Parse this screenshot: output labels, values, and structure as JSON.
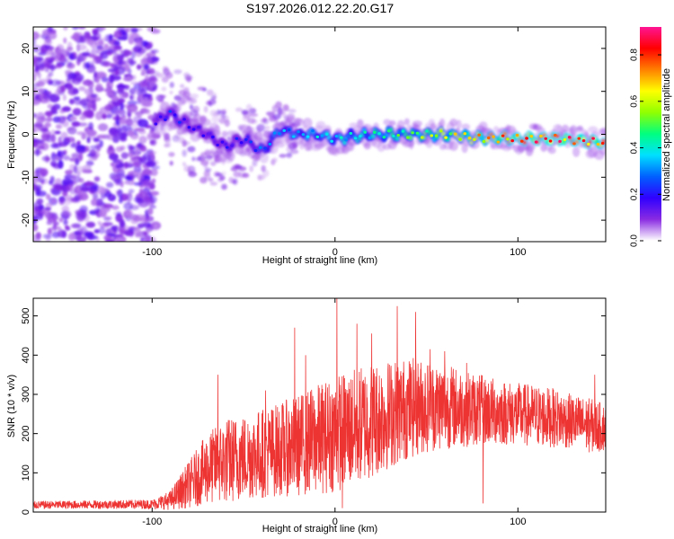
{
  "chart_data": [
    {
      "type": "heatmap",
      "title": "S197.2026.012.22.20.G17",
      "xlabel": "Height of straight line (km)",
      "ylabel": "Frequency (Hz)",
      "xlim": [
        -165,
        148
      ],
      "ylim": [
        -25,
        25
      ],
      "xticks": [
        -100,
        0,
        100
      ],
      "xtick_labels": [
        "-100",
        "0",
        "100"
      ],
      "yticks": [
        -20,
        -10,
        0,
        10,
        20
      ],
      "ytick_labels": [
        "-20",
        "-10",
        "0",
        "10",
        "20"
      ],
      "colorbar": {
        "label": "Normalized spectral amplitude",
        "range": [
          0,
          0.92
        ],
        "ticks": [
          0.0,
          0.2,
          0.4,
          0.6,
          0.8
        ],
        "tick_labels": [
          "0.0",
          "0.2",
          "0.4",
          "0.6",
          "0.8"
        ],
        "colormap": [
          "#ffffff",
          "#8a2be2",
          "#3000ff",
          "#0060ff",
          "#00e0ff",
          "#00ff80",
          "#90ff00",
          "#ffff00",
          "#ff8000",
          "#ff0000",
          "#ff1493"
        ]
      },
      "ridge": {
        "description_points_x": [
          -100,
          -90,
          -80,
          -70,
          -60,
          -50,
          -40,
          -30,
          -20,
          -10,
          0,
          20,
          40,
          60,
          80,
          100,
          120,
          148
        ],
        "frequency_hz": [
          2,
          5,
          2,
          0,
          -3,
          -1,
          -4,
          1,
          0,
          0,
          -1,
          0,
          0,
          0,
          -1,
          -1,
          -1,
          -2
        ],
        "amplitude": [
          0.15,
          0.25,
          0.2,
          0.18,
          0.2,
          0.22,
          0.3,
          0.35,
          0.35,
          0.4,
          0.4,
          0.45,
          0.55,
          0.65,
          0.75,
          0.85,
          0.9,
          0.85
        ]
      }
    },
    {
      "type": "line",
      "title": "",
      "xlabel": "Height of straight line (km)",
      "ylabel": "SNR (10 * v/v)",
      "xlim": [
        -165,
        148
      ],
      "ylim": [
        0,
        545
      ],
      "xticks": [
        -100,
        0,
        100
      ],
      "xtick_labels": [
        "-100",
        "0",
        "100"
      ],
      "yticks": [
        0,
        100,
        200,
        300,
        400,
        500
      ],
      "ytick_labels": [
        "0",
        "100",
        "200",
        "300",
        "400",
        "500"
      ],
      "color": "#ee3333",
      "envelope": {
        "x": [
          -165,
          -100,
          -90,
          -80,
          -70,
          -60,
          -50,
          -40,
          -30,
          -20,
          -10,
          0,
          10,
          20,
          30,
          40,
          50,
          60,
          70,
          80,
          90,
          100,
          110,
          120,
          130,
          140,
          148
        ],
        "mean": [
          18,
          20,
          30,
          70,
          110,
          130,
          140,
          150,
          160,
          170,
          185,
          200,
          215,
          235,
          250,
          265,
          270,
          270,
          265,
          260,
          255,
          250,
          245,
          240,
          230,
          220,
          215
        ],
        "amplitude": [
          10,
          12,
          25,
          60,
          90,
          110,
          110,
          115,
          120,
          130,
          140,
          150,
          150,
          150,
          140,
          130,
          120,
          110,
          100,
          90,
          85,
          80,
          80,
          75,
          70,
          70,
          60
        ]
      },
      "peaks": [
        {
          "x": -64,
          "y": 350
        },
        {
          "x": -38,
          "y": 310
        },
        {
          "x": -22,
          "y": 470
        },
        {
          "x": -16,
          "y": 400
        },
        {
          "x": 1,
          "y": 545
        },
        {
          "x": 12,
          "y": 480
        },
        {
          "x": 20,
          "y": 455
        },
        {
          "x": 34,
          "y": 525
        },
        {
          "x": 44,
          "y": 510
        },
        {
          "x": 52,
          "y": 415
        },
        {
          "x": 60,
          "y": 410
        },
        {
          "x": 72,
          "y": 380
        },
        {
          "x": 142,
          "y": 350
        }
      ],
      "dips": [
        {
          "x": 4,
          "y": 10
        },
        {
          "x": 81,
          "y": 22
        }
      ]
    }
  ]
}
